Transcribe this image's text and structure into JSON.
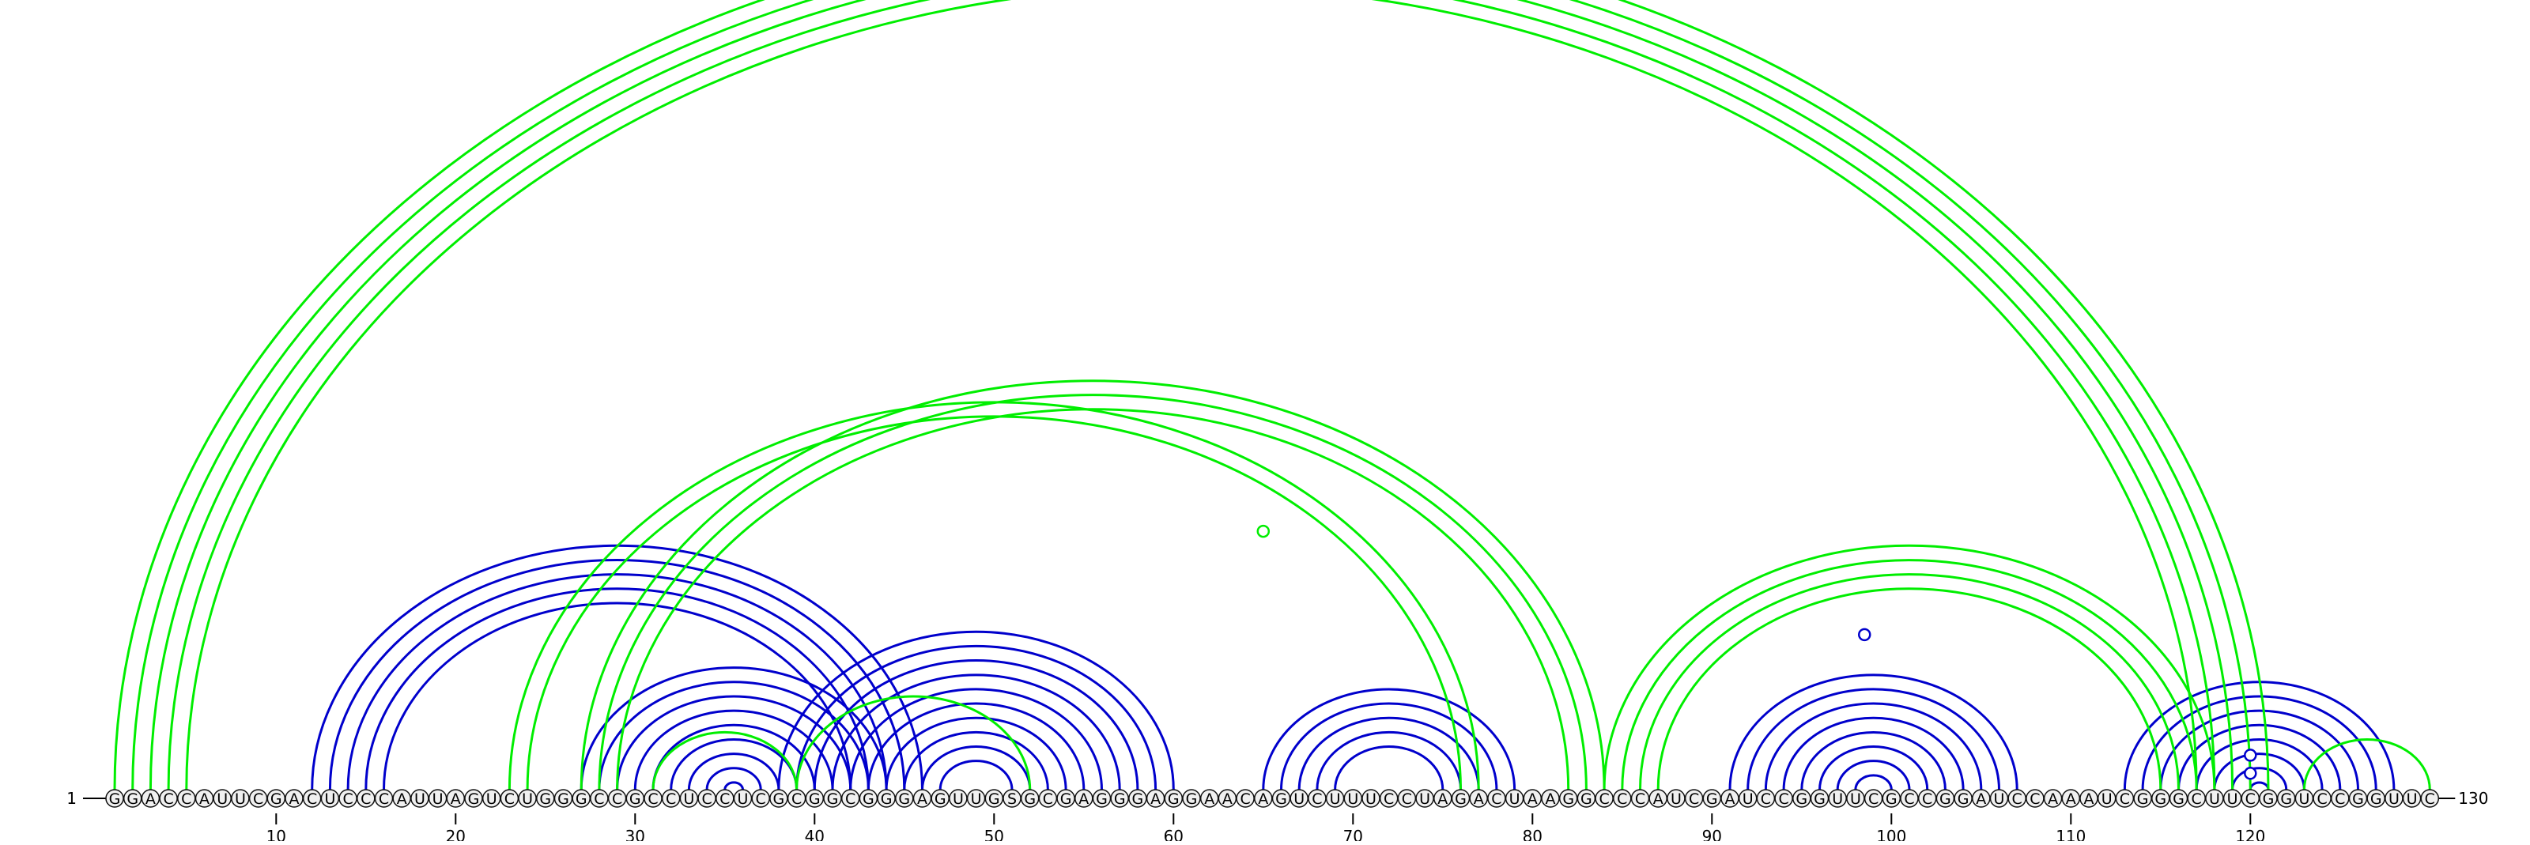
{
  "sequence": "GGACCAUUCGACUCCCAUUAGUCUGGGCCGCCUCCUCGCGGCGGGAGUUGSGCGAGGGAGGAACAGUCUUUCCUAGACUAAGGCCCAUCGAUCCGGUUCGCCGGAUCCAAAUCGGGCUUCGGUCCGGUUC",
  "start_label": "1",
  "end_label": "130",
  "tick_labels": [
    "10",
    "20",
    "30",
    "40",
    "50",
    "60",
    "70",
    "80",
    "90",
    "100",
    "110",
    "120"
  ],
  "colors": {
    "blue": "#0000cc",
    "green": "#00ee00",
    "text": "#000000"
  },
  "blue_helices": [
    {
      "i": 12,
      "j": 46,
      "n": 5
    },
    {
      "i": 27,
      "j": 44,
      "n": 9
    },
    {
      "i": 38,
      "j": 60,
      "n": 10
    },
    {
      "i": 65,
      "j": 79,
      "n": 5
    },
    {
      "i": 91,
      "j": 107,
      "n": 8
    },
    {
      "i": 113,
      "j": 128,
      "n": 8
    }
  ],
  "green_helices": [
    {
      "i": 1,
      "j": 121,
      "n": 5
    },
    {
      "i": 23,
      "j": 77,
      "n": 2
    },
    {
      "i": 27,
      "j": 84,
      "n": 3
    },
    {
      "i": 31,
      "j": 39,
      "n": 1
    },
    {
      "i": 39,
      "j": 52,
      "n": 1
    },
    {
      "i": 84,
      "j": 118,
      "n": 4
    },
    {
      "i": 123,
      "j": 130,
      "n": 1
    }
  ],
  "markers": [
    {
      "pos": 65,
      "height_frac": 1.0,
      "color": "green"
    },
    {
      "pos": 120,
      "height_frac": 0.19,
      "color": "blue"
    },
    {
      "pos": 120,
      "height_frac": 0.4,
      "color": "blue"
    },
    {
      "pos": 98.5,
      "height_frac": 0.6,
      "color": "blue"
    }
  ]
}
